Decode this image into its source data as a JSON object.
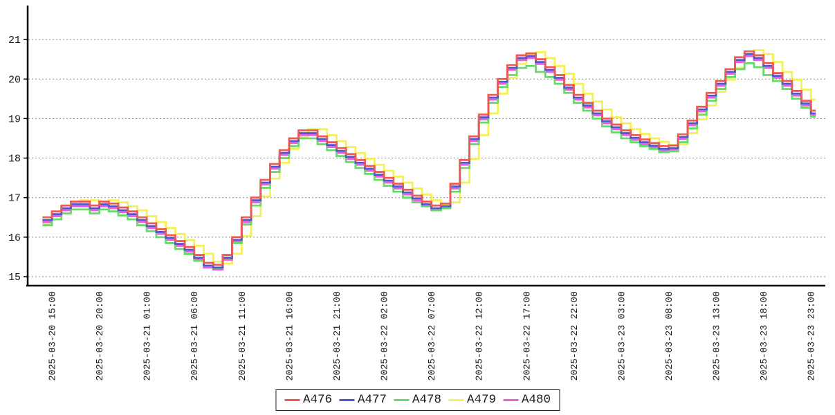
{
  "chart_data": {
    "type": "line",
    "step": true,
    "title": "",
    "xlabel": "",
    "ylabel": "",
    "grid": "horizontal-dotted",
    "grid_color": "#8a8a8a",
    "axis_color": "#000000",
    "legend_position": "bottom-center",
    "x_start": "2025-03-20 14:00",
    "x_interval": "1 hour",
    "n_points": 82,
    "ylim": [
      14.9,
      21.9
    ],
    "y_ticks": [
      15,
      16,
      17,
      18,
      19,
      20,
      21
    ],
    "x_tick_labels": [
      "2025-03-20 15:00",
      "2025-03-20 20:00",
      "2025-03-21 01:00",
      "2025-03-21 06:00",
      "2025-03-21 11:00",
      "2025-03-21 16:00",
      "2025-03-21 21:00",
      "2025-03-22 02:00",
      "2025-03-22 07:00",
      "2025-03-22 12:00",
      "2025-03-22 17:00",
      "2025-03-22 22:00",
      "2025-03-23 03:00",
      "2025-03-23 08:00",
      "2025-03-23 13:00",
      "2025-03-23 18:00",
      "2025-03-23 23:00"
    ],
    "x_tick_first_index": 1,
    "x_tick_every": 5,
    "series": [
      {
        "name": "A476",
        "color": "#ee5a50",
        "values": [
          16.5,
          16.65,
          16.8,
          16.9,
          16.9,
          16.8,
          16.9,
          16.85,
          16.75,
          16.65,
          16.5,
          16.35,
          16.2,
          16.05,
          15.9,
          15.75,
          15.55,
          15.35,
          15.3,
          15.55,
          16.0,
          16.5,
          17.0,
          17.45,
          17.85,
          18.2,
          18.5,
          18.7,
          18.7,
          18.55,
          18.4,
          18.25,
          18.1,
          17.95,
          17.8,
          17.65,
          17.5,
          17.35,
          17.2,
          17.05,
          16.9,
          16.8,
          16.85,
          17.35,
          17.95,
          18.55,
          19.1,
          19.6,
          20.0,
          20.35,
          20.6,
          20.65,
          20.5,
          20.3,
          20.1,
          19.85,
          19.6,
          19.4,
          19.2,
          19.0,
          18.85,
          18.7,
          18.58,
          18.47,
          18.38,
          18.3,
          18.32,
          18.6,
          18.95,
          19.3,
          19.65,
          19.95,
          20.25,
          20.55,
          20.7,
          20.6,
          20.4,
          20.15,
          19.95,
          19.7,
          19.45,
          19.2
        ]
      },
      {
        "name": "A477",
        "color": "#5456d0",
        "values": [
          16.43,
          16.58,
          16.73,
          16.83,
          16.83,
          16.73,
          16.83,
          16.78,
          16.68,
          16.58,
          16.43,
          16.28,
          16.13,
          15.98,
          15.83,
          15.68,
          15.48,
          15.28,
          15.23,
          15.48,
          15.93,
          16.43,
          16.93,
          17.38,
          17.78,
          18.13,
          18.43,
          18.63,
          18.63,
          18.48,
          18.33,
          18.18,
          18.03,
          17.88,
          17.73,
          17.58,
          17.43,
          17.28,
          17.13,
          16.98,
          16.83,
          16.73,
          16.78,
          17.28,
          17.88,
          18.48,
          19.03,
          19.53,
          19.93,
          20.28,
          20.53,
          20.58,
          20.43,
          20.23,
          20.03,
          19.78,
          19.53,
          19.33,
          19.13,
          18.93,
          18.78,
          18.63,
          18.51,
          18.4,
          18.31,
          18.23,
          18.25,
          18.53,
          18.88,
          19.23,
          19.58,
          19.88,
          20.18,
          20.48,
          20.63,
          20.53,
          20.33,
          20.08,
          19.88,
          19.63,
          19.38,
          19.13
        ]
      },
      {
        "name": "A478",
        "color": "#66dc66",
        "values": [
          16.3,
          16.45,
          16.6,
          16.7,
          16.7,
          16.6,
          16.7,
          16.65,
          16.55,
          16.45,
          16.3,
          16.15,
          16.0,
          15.85,
          15.7,
          15.57,
          15.4,
          15.27,
          15.22,
          15.47,
          15.85,
          16.32,
          16.8,
          17.25,
          17.65,
          18.0,
          18.3,
          18.5,
          18.5,
          18.35,
          18.2,
          18.05,
          17.9,
          17.75,
          17.6,
          17.45,
          17.3,
          17.15,
          17.0,
          16.88,
          16.78,
          16.68,
          16.73,
          17.15,
          17.75,
          18.35,
          18.9,
          19.4,
          19.8,
          20.1,
          20.28,
          20.33,
          20.18,
          20.05,
          19.88,
          19.65,
          19.4,
          19.2,
          19.0,
          18.8,
          18.65,
          18.5,
          18.4,
          18.3,
          18.23,
          18.15,
          18.17,
          18.4,
          18.75,
          19.1,
          19.45,
          19.75,
          20.05,
          20.25,
          20.4,
          20.3,
          20.1,
          19.95,
          19.75,
          19.5,
          19.27,
          19.05
        ]
      },
      {
        "name": "A479",
        "color": "#f4f155",
        "values": [
          16.35,
          16.53,
          16.68,
          16.83,
          16.93,
          16.93,
          16.83,
          16.93,
          16.88,
          16.78,
          16.68,
          16.53,
          16.38,
          16.23,
          16.08,
          15.93,
          15.78,
          15.58,
          15.38,
          15.33,
          15.58,
          16.03,
          16.53,
          17.03,
          17.48,
          17.88,
          18.23,
          18.53,
          18.73,
          18.73,
          18.58,
          18.43,
          18.28,
          18.13,
          17.98,
          17.83,
          17.68,
          17.53,
          17.38,
          17.23,
          17.08,
          16.93,
          16.83,
          16.88,
          17.38,
          17.98,
          18.58,
          19.13,
          19.63,
          20.03,
          20.38,
          20.63,
          20.68,
          20.53,
          20.33,
          20.13,
          19.88,
          19.63,
          19.43,
          19.23,
          19.03,
          18.88,
          18.73,
          18.61,
          18.5,
          18.41,
          18.33,
          18.35,
          18.63,
          18.98,
          19.33,
          19.68,
          19.98,
          20.28,
          20.58,
          20.73,
          20.63,
          20.43,
          20.18,
          19.98,
          19.73,
          19.48
        ]
      },
      {
        "name": "A480",
        "color": "#ec5ce4",
        "values": [
          16.38,
          16.53,
          16.68,
          16.78,
          16.78,
          16.68,
          16.78,
          16.73,
          16.63,
          16.53,
          16.38,
          16.23,
          16.08,
          15.93,
          15.78,
          15.63,
          15.43,
          15.23,
          15.18,
          15.43,
          15.88,
          16.38,
          16.88,
          17.33,
          17.73,
          18.08,
          18.38,
          18.58,
          18.58,
          18.43,
          18.28,
          18.13,
          17.98,
          17.83,
          17.68,
          17.53,
          17.38,
          17.23,
          17.08,
          16.93,
          16.78,
          16.68,
          16.73,
          17.23,
          17.83,
          18.43,
          18.98,
          19.48,
          19.88,
          20.23,
          20.48,
          20.53,
          20.38,
          20.18,
          19.98,
          19.73,
          19.48,
          19.28,
          19.08,
          18.88,
          18.73,
          18.58,
          18.46,
          18.35,
          18.26,
          18.18,
          18.2,
          18.48,
          18.83,
          19.18,
          19.53,
          19.83,
          20.13,
          20.43,
          20.58,
          20.48,
          20.28,
          20.03,
          19.83,
          19.58,
          19.33,
          19.08
        ]
      }
    ]
  }
}
